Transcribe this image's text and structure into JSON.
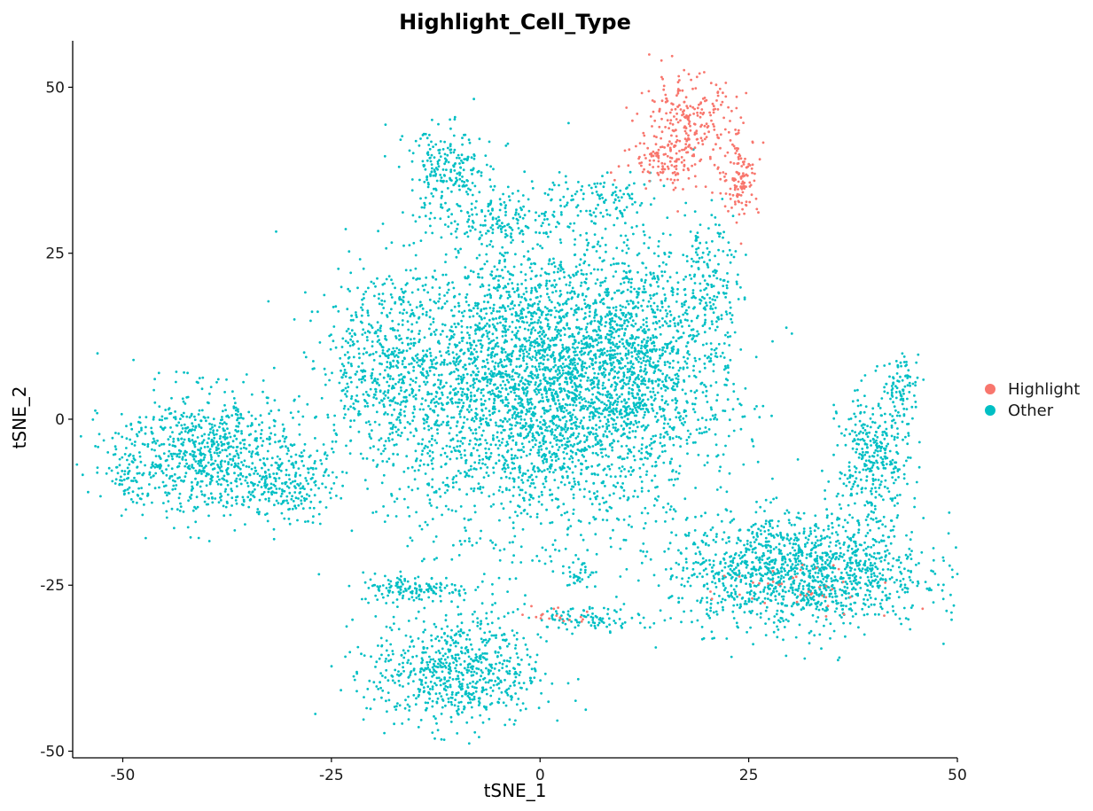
{
  "chart_data": {
    "type": "scatter",
    "title": "Highlight_Cell_Type",
    "xlabel": "tSNE_1",
    "ylabel": "tSNE_2",
    "xlim": [
      -56,
      50
    ],
    "ylim": [
      -51,
      57
    ],
    "x_ticks": [
      -50,
      -25,
      0,
      25,
      50
    ],
    "y_ticks": [
      50,
      25,
      0,
      -25,
      -50
    ],
    "x_tick_labels": [
      "-50",
      "-25",
      "0",
      "25",
      "50"
    ],
    "y_tick_labels": [
      "50",
      "25",
      "0",
      "-25",
      "-50"
    ],
    "grid": false,
    "legend_position": "right",
    "colors": {
      "Highlight": "#F8766D",
      "Other": "#00BFC4"
    },
    "series": [
      {
        "name": "Highlight",
        "clusters": [
          {
            "cx": 17.5,
            "cy": 44,
            "sx": 3.5,
            "sy": 4.5,
            "n": 260
          },
          {
            "cx": 15,
            "cy": 39,
            "sx": 3,
            "sy": 2,
            "n": 90
          },
          {
            "cx": 24,
            "cy": 36.5,
            "sx": 1.3,
            "sy": 3.5,
            "n": 120
          },
          {
            "cx": 2.5,
            "cy": -29.5,
            "sx": 2,
            "sy": 1,
            "n": 18
          },
          {
            "cx": 31,
            "cy": -26,
            "sx": 8,
            "sy": 3,
            "n": 40
          }
        ]
      },
      {
        "name": "Other",
        "clusters": [
          {
            "cx": 0,
            "cy": 5,
            "sx": 11,
            "sy": 13,
            "n": 3600
          },
          {
            "cx": -18,
            "cy": 8,
            "sx": 5,
            "sy": 8,
            "n": 500
          },
          {
            "cx": 12,
            "cy": 10,
            "sx": 6,
            "sy": 10,
            "n": 700
          },
          {
            "cx": -11,
            "cy": 37,
            "sx": 3,
            "sy": 4,
            "n": 230
          },
          {
            "cx": -4,
            "cy": 30,
            "sx": 4,
            "sy": 2,
            "n": 120
          },
          {
            "cx": 7,
            "cy": 33,
            "sx": 5,
            "sy": 2,
            "n": 100
          },
          {
            "cx": -40,
            "cy": -5,
            "sx": 6.5,
            "sy": 5.5,
            "n": 800
          },
          {
            "cx": -31,
            "cy": -10,
            "sx": 3.5,
            "sy": 3,
            "n": 200
          },
          {
            "cx": -49,
            "cy": -8,
            "sx": 1.5,
            "sy": 3,
            "n": 60
          },
          {
            "cx": -10,
            "cy": -38,
            "sx": 6,
            "sy": 5,
            "n": 700
          },
          {
            "cx": -15,
            "cy": -25.5,
            "sx": 4,
            "sy": 1.2,
            "n": 150
          },
          {
            "cx": 31,
            "cy": -23,
            "sx": 9,
            "sy": 5,
            "n": 1400
          },
          {
            "cx": 40,
            "cy": -6,
            "sx": 2.5,
            "sy": 6,
            "n": 350
          },
          {
            "cx": 43.5,
            "cy": 5,
            "sx": 1.2,
            "sy": 3,
            "n": 80
          },
          {
            "cx": 6,
            "cy": -30,
            "sx": 4,
            "sy": 1,
            "n": 90
          },
          {
            "cx": 5,
            "cy": -23.5,
            "sx": 1,
            "sy": 1.5,
            "n": 30
          },
          {
            "cx": 20.5,
            "cy": 20,
            "sx": 2,
            "sy": 8,
            "n": 150
          }
        ]
      }
    ]
  }
}
